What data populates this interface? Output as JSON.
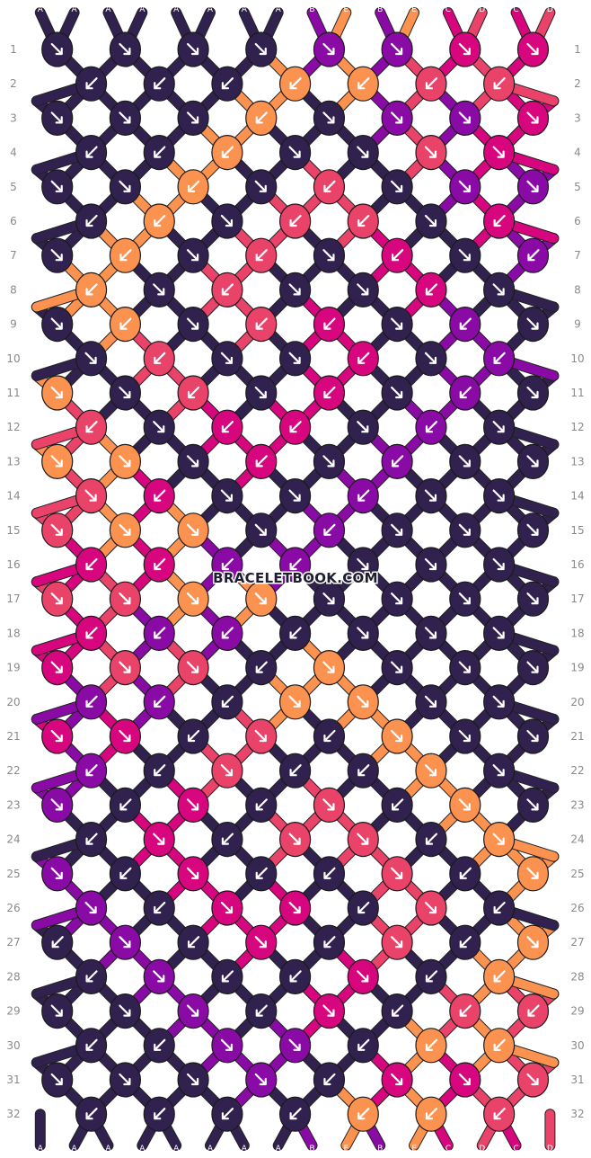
{
  "colors": {
    "A": "#30214f",
    "B": "#8a0aa6",
    "C": "#d7067e",
    "D": "#e9436a",
    "E": "#fb9250"
  },
  "top_strands": [
    "A",
    "A",
    "A",
    "A",
    "A",
    "A",
    "A",
    "A",
    "B",
    "E",
    "B",
    "E",
    "C",
    "D",
    "C",
    "D"
  ],
  "bottom_strands": [
    "A",
    "A",
    "A",
    "A",
    "A",
    "A",
    "A",
    "A",
    "B",
    "E",
    "B",
    "E",
    "C",
    "D",
    "C",
    "D"
  ],
  "rows": 32,
  "watermark": "BRACELETBOOK.COM",
  "pattern": {
    "knots": [
      [
        {
          "c": "A",
          "d": "r"
        },
        {
          "c": "A",
          "d": "r"
        },
        {
          "c": "A",
          "d": "r"
        },
        {
          "c": "A",
          "d": "r"
        },
        {
          "c": "B",
          "d": "r"
        },
        {
          "c": "B",
          "d": "r"
        },
        {
          "c": "C",
          "d": "r"
        },
        {
          "c": "C",
          "d": "r"
        }
      ],
      [
        {
          "c": "A",
          "d": "l"
        },
        {
          "c": "A",
          "d": "l"
        },
        {
          "c": "A",
          "d": "l"
        },
        {
          "c": "E",
          "d": "l"
        },
        {
          "c": "E",
          "d": "l"
        },
        {
          "c": "D",
          "d": "l"
        },
        {
          "c": "D",
          "d": "l"
        }
      ],
      [
        {
          "c": "A",
          "d": "r"
        },
        {
          "c": "A",
          "d": "r"
        },
        {
          "c": "A",
          "d": "r"
        },
        {
          "c": "E",
          "d": "l"
        },
        {
          "c": "A",
          "d": "r"
        },
        {
          "c": "B",
          "d": "r"
        },
        {
          "c": "B",
          "d": "r"
        },
        {
          "c": "C",
          "d": "r"
        }
      ],
      [
        {
          "c": "A",
          "d": "l"
        },
        {
          "c": "A",
          "d": "l"
        },
        {
          "c": "E",
          "d": "l"
        },
        {
          "c": "A",
          "d": "r"
        },
        {
          "c": "A",
          "d": "r"
        },
        {
          "c": "D",
          "d": "r"
        },
        {
          "c": "C",
          "d": "r"
        }
      ],
      [
        {
          "c": "A",
          "d": "r"
        },
        {
          "c": "A",
          "d": "r"
        },
        {
          "c": "E",
          "d": "l"
        },
        {
          "c": "A",
          "d": "r"
        },
        {
          "c": "D",
          "d": "l"
        },
        {
          "c": "A",
          "d": "r"
        },
        {
          "c": "B",
          "d": "r"
        },
        {
          "c": "B",
          "d": "r"
        }
      ],
      [
        {
          "c": "A",
          "d": "l"
        },
        {
          "c": "E",
          "d": "l"
        },
        {
          "c": "A",
          "d": "r"
        },
        {
          "c": "D",
          "d": "l"
        },
        {
          "c": "D",
          "d": "l"
        },
        {
          "c": "A",
          "d": "r"
        },
        {
          "c": "C",
          "d": "l"
        }
      ],
      [
        {
          "c": "A",
          "d": "r"
        },
        {
          "c": "E",
          "d": "l"
        },
        {
          "c": "A",
          "d": "r"
        },
        {
          "c": "D",
          "d": "l"
        },
        {
          "c": "A",
          "d": "r"
        },
        {
          "c": "C",
          "d": "l"
        },
        {
          "c": "A",
          "d": "r"
        },
        {
          "c": "B",
          "d": "l"
        }
      ],
      [
        {
          "c": "E",
          "d": "l"
        },
        {
          "c": "A",
          "d": "r"
        },
        {
          "c": "D",
          "d": "l"
        },
        {
          "c": "A",
          "d": "r"
        },
        {
          "c": "A",
          "d": "r"
        },
        {
          "c": "C",
          "d": "l"
        },
        {
          "c": "A",
          "d": "r"
        }
      ],
      [
        {
          "c": "A",
          "d": "r"
        },
        {
          "c": "E",
          "d": "l"
        },
        {
          "c": "A",
          "d": "r"
        },
        {
          "c": "D",
          "d": "l"
        },
        {
          "c": "C",
          "d": "l"
        },
        {
          "c": "A",
          "d": "r"
        },
        {
          "c": "B",
          "d": "l"
        },
        {
          "c": "A",
          "d": "r"
        }
      ],
      [
        {
          "c": "A",
          "d": "r"
        },
        {
          "c": "D",
          "d": "l"
        },
        {
          "c": "A",
          "d": "r"
        },
        {
          "c": "A",
          "d": "r"
        },
        {
          "c": "C",
          "d": "l"
        },
        {
          "c": "A",
          "d": "r"
        },
        {
          "c": "B",
          "d": "l"
        }
      ],
      [
        {
          "c": "E",
          "d": "r"
        },
        {
          "c": "A",
          "d": "r"
        },
        {
          "c": "D",
          "d": "l"
        },
        {
          "c": "A",
          "d": "r"
        },
        {
          "c": "C",
          "d": "l"
        },
        {
          "c": "A",
          "d": "r"
        },
        {
          "c": "B",
          "d": "l"
        },
        {
          "c": "A",
          "d": "r"
        }
      ],
      [
        {
          "c": "D",
          "d": "l"
        },
        {
          "c": "A",
          "d": "r"
        },
        {
          "c": "C",
          "d": "l"
        },
        {
          "c": "C",
          "d": "l"
        },
        {
          "c": "A",
          "d": "r"
        },
        {
          "c": "B",
          "d": "l"
        },
        {
          "c": "A",
          "d": "r"
        }
      ],
      [
        {
          "c": "E",
          "d": "r"
        },
        {
          "c": "E",
          "d": "r"
        },
        {
          "c": "A",
          "d": "r"
        },
        {
          "c": "C",
          "d": "l"
        },
        {
          "c": "A",
          "d": "r"
        },
        {
          "c": "B",
          "d": "l"
        },
        {
          "c": "A",
          "d": "r"
        },
        {
          "c": "A",
          "d": "r"
        }
      ],
      [
        {
          "c": "D",
          "d": "r"
        },
        {
          "c": "C",
          "d": "l"
        },
        {
          "c": "A",
          "d": "r"
        },
        {
          "c": "A",
          "d": "r"
        },
        {
          "c": "B",
          "d": "l"
        },
        {
          "c": "A",
          "d": "r"
        },
        {
          "c": "A",
          "d": "r"
        }
      ],
      [
        {
          "c": "D",
          "d": "r"
        },
        {
          "c": "E",
          "d": "r"
        },
        {
          "c": "E",
          "d": "r"
        },
        {
          "c": "A",
          "d": "r"
        },
        {
          "c": "B",
          "d": "l"
        },
        {
          "c": "A",
          "d": "r"
        },
        {
          "c": "A",
          "d": "r"
        },
        {
          "c": "A",
          "d": "r"
        }
      ],
      [
        {
          "c": "C",
          "d": "l"
        },
        {
          "c": "C",
          "d": "l"
        },
        {
          "c": "B",
          "d": "l"
        },
        {
          "c": "B",
          "d": "l"
        },
        {
          "c": "A",
          "d": "r"
        },
        {
          "c": "A",
          "d": "r"
        },
        {
          "c": "A",
          "d": "r"
        }
      ],
      [
        {
          "c": "D",
          "d": "r"
        },
        {
          "c": "D",
          "d": "r"
        },
        {
          "c": "E",
          "d": "r"
        },
        {
          "c": "E",
          "d": "r"
        },
        {
          "c": "A",
          "d": "r"
        },
        {
          "c": "A",
          "d": "r"
        },
        {
          "c": "A",
          "d": "r"
        },
        {
          "c": "A",
          "d": "r"
        }
      ],
      [
        {
          "c": "C",
          "d": "l"
        },
        {
          "c": "B",
          "d": "l"
        },
        {
          "c": "B",
          "d": "l"
        },
        {
          "c": "A",
          "d": "l"
        },
        {
          "c": "A",
          "d": "r"
        },
        {
          "c": "A",
          "d": "r"
        },
        {
          "c": "A",
          "d": "r"
        }
      ],
      [
        {
          "c": "C",
          "d": "r"
        },
        {
          "c": "D",
          "d": "r"
        },
        {
          "c": "D",
          "d": "r"
        },
        {
          "c": "A",
          "d": "l"
        },
        {
          "c": "E",
          "d": "r"
        },
        {
          "c": "A",
          "d": "r"
        },
        {
          "c": "A",
          "d": "r"
        },
        {
          "c": "A",
          "d": "r"
        }
      ],
      [
        {
          "c": "B",
          "d": "l"
        },
        {
          "c": "B",
          "d": "l"
        },
        {
          "c": "A",
          "d": "l"
        },
        {
          "c": "E",
          "d": "r"
        },
        {
          "c": "E",
          "d": "r"
        },
        {
          "c": "A",
          "d": "r"
        },
        {
          "c": "A",
          "d": "r"
        }
      ],
      [
        {
          "c": "C",
          "d": "r"
        },
        {
          "c": "C",
          "d": "r"
        },
        {
          "c": "A",
          "d": "l"
        },
        {
          "c": "D",
          "d": "r"
        },
        {
          "c": "A",
          "d": "l"
        },
        {
          "c": "E",
          "d": "r"
        },
        {
          "c": "A",
          "d": "r"
        },
        {
          "c": "A",
          "d": "r"
        }
      ],
      [
        {
          "c": "B",
          "d": "l"
        },
        {
          "c": "A",
          "d": "l"
        },
        {
          "c": "D",
          "d": "r"
        },
        {
          "c": "A",
          "d": "l"
        },
        {
          "c": "A",
          "d": "l"
        },
        {
          "c": "E",
          "d": "r"
        },
        {
          "c": "A",
          "d": "r"
        }
      ],
      [
        {
          "c": "B",
          "d": "r"
        },
        {
          "c": "A",
          "d": "l"
        },
        {
          "c": "C",
          "d": "r"
        },
        {
          "c": "A",
          "d": "l"
        },
        {
          "c": "D",
          "d": "r"
        },
        {
          "c": "A",
          "d": "l"
        },
        {
          "c": "E",
          "d": "r"
        },
        {
          "c": "A",
          "d": "r"
        }
      ],
      [
        {
          "c": "A",
          "d": "l"
        },
        {
          "c": "C",
          "d": "r"
        },
        {
          "c": "A",
          "d": "l"
        },
        {
          "c": "D",
          "d": "r"
        },
        {
          "c": "D",
          "d": "r"
        },
        {
          "c": "A",
          "d": "l"
        },
        {
          "c": "E",
          "d": "r"
        }
      ],
      [
        {
          "c": "B",
          "d": "r"
        },
        {
          "c": "A",
          "d": "l"
        },
        {
          "c": "C",
          "d": "r"
        },
        {
          "c": "A",
          "d": "l"
        },
        {
          "c": "A",
          "d": "l"
        },
        {
          "c": "D",
          "d": "r"
        },
        {
          "c": "A",
          "d": "l"
        },
        {
          "c": "E",
          "d": "r"
        }
      ],
      [
        {
          "c": "B",
          "d": "r"
        },
        {
          "c": "A",
          "d": "l"
        },
        {
          "c": "C",
          "d": "r"
        },
        {
          "c": "C",
          "d": "r"
        },
        {
          "c": "A",
          "d": "l"
        },
        {
          "c": "D",
          "d": "r"
        },
        {
          "c": "A",
          "d": "l"
        }
      ],
      [
        {
          "c": "A",
          "d": "l"
        },
        {
          "c": "B",
          "d": "r"
        },
        {
          "c": "A",
          "d": "l"
        },
        {
          "c": "C",
          "d": "r"
        },
        {
          "c": "A",
          "d": "l"
        },
        {
          "c": "D",
          "d": "r"
        },
        {
          "c": "A",
          "d": "l"
        },
        {
          "c": "E",
          "d": "r"
        }
      ],
      [
        {
          "c": "A",
          "d": "l"
        },
        {
          "c": "B",
          "d": "r"
        },
        {
          "c": "A",
          "d": "l"
        },
        {
          "c": "A",
          "d": "l"
        },
        {
          "c": "C",
          "d": "r"
        },
        {
          "c": "A",
          "d": "l"
        },
        {
          "c": "E",
          "d": "l"
        }
      ],
      [
        {
          "c": "A",
          "d": "r"
        },
        {
          "c": "A",
          "d": "r"
        },
        {
          "c": "B",
          "d": "r"
        },
        {
          "c": "A",
          "d": "l"
        },
        {
          "c": "C",
          "d": "r"
        },
        {
          "c": "A",
          "d": "l"
        },
        {
          "c": "D",
          "d": "l"
        },
        {
          "c": "D",
          "d": "l"
        }
      ],
      [
        {
          "c": "A",
          "d": "l"
        },
        {
          "c": "A",
          "d": "l"
        },
        {
          "c": "B",
          "d": "r"
        },
        {
          "c": "B",
          "d": "r"
        },
        {
          "c": "A",
          "d": "l"
        },
        {
          "c": "E",
          "d": "l"
        },
        {
          "c": "E",
          "d": "l"
        }
      ],
      [
        {
          "c": "A",
          "d": "r"
        },
        {
          "c": "A",
          "d": "r"
        },
        {
          "c": "A",
          "d": "r"
        },
        {
          "c": "B",
          "d": "r"
        },
        {
          "c": "A",
          "d": "l"
        },
        {
          "c": "C",
          "d": "r"
        },
        {
          "c": "C",
          "d": "r"
        },
        {
          "c": "D",
          "d": "r"
        }
      ],
      [
        {
          "c": "A",
          "d": "l"
        },
        {
          "c": "A",
          "d": "l"
        },
        {
          "c": "A",
          "d": "l"
        },
        {
          "c": "A",
          "d": "l"
        },
        {
          "c": "E",
          "d": "l"
        },
        {
          "c": "E",
          "d": "l"
        },
        {
          "c": "D",
          "d": "l"
        }
      ]
    ]
  }
}
